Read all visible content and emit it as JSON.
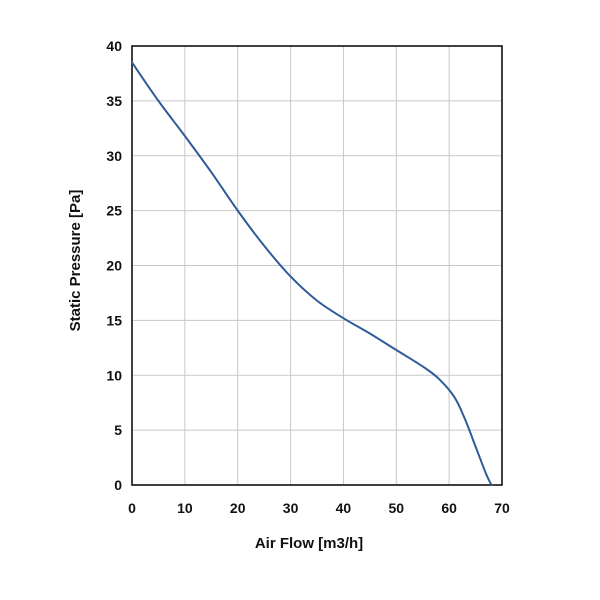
{
  "chart_data": {
    "type": "line",
    "title": "",
    "xlabel": "Air Flow [m3/h]",
    "ylabel": "Static Pressure [Pa]",
    "xlim": [
      0,
      70
    ],
    "ylim": [
      0,
      40
    ],
    "xticks": [
      "0",
      "10",
      "20",
      "30",
      "40",
      "50",
      "60",
      "70"
    ],
    "yticks": [
      "0",
      "5",
      "10",
      "15",
      "20",
      "25",
      "30",
      "35",
      "40"
    ],
    "grid": true,
    "legend": "none",
    "series": [
      {
        "color": "#2e5c9a",
        "x": [
          0,
          5,
          10,
          15,
          20,
          25,
          30,
          35,
          40,
          45,
          50,
          55,
          58,
          61,
          63,
          65,
          67,
          68
        ],
        "y": [
          38.5,
          35.0,
          31.8,
          28.5,
          25.0,
          21.8,
          19.0,
          16.8,
          15.2,
          13.8,
          12.3,
          10.8,
          9.7,
          8.0,
          6.0,
          3.5,
          1.0,
          0
        ]
      }
    ]
  }
}
